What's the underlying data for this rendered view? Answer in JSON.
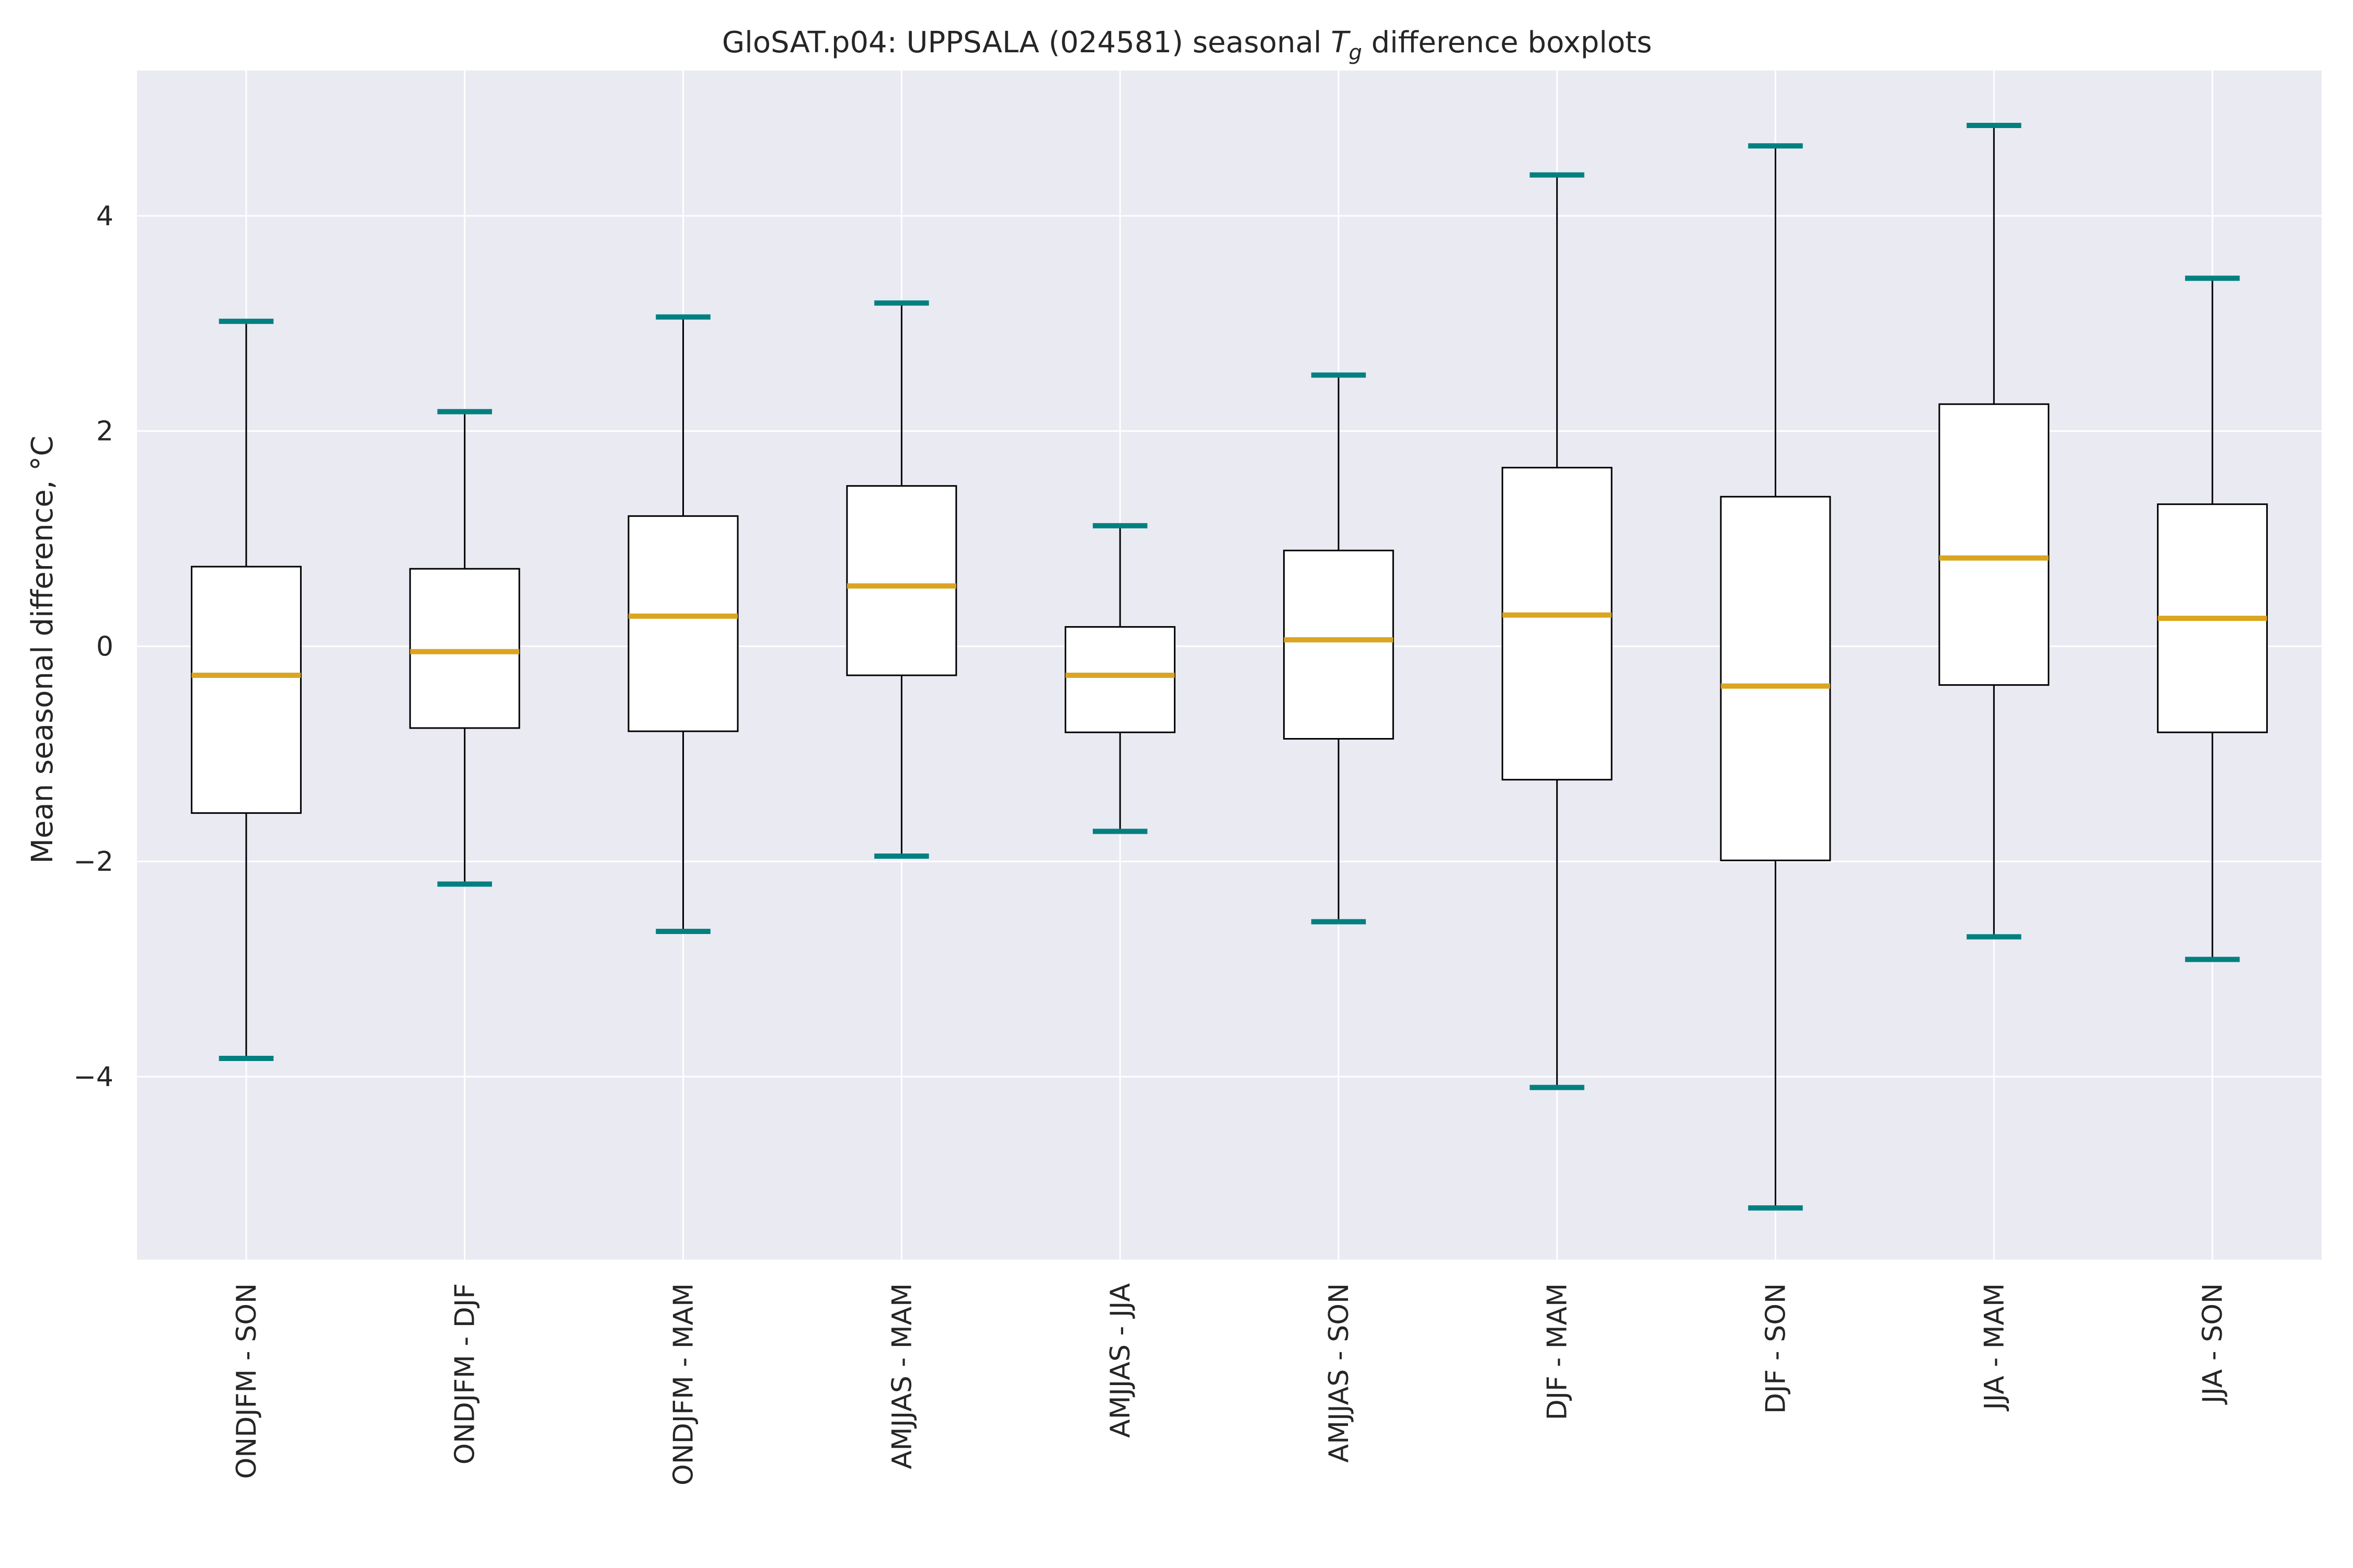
{
  "chart_data": {
    "type": "boxplot",
    "title": {
      "prefix": "GloSAT.p04: UPPSALA (024581) seasonal ",
      "symbol": "T",
      "subscript": "g",
      "suffix": " difference boxplots"
    },
    "ylabel": "Mean seasonal difference, °C",
    "xlabel": "",
    "ylim": [
      -5.7,
      5.35
    ],
    "yticks": [
      -4,
      -2,
      0,
      2,
      4
    ],
    "ytick_labels": [
      "−4",
      "−2",
      "0",
      "2",
      "4"
    ],
    "grid": true,
    "categories": [
      "ONDJFM - SON",
      "ONDJFM - DJF",
      "ONDJFM - MAM",
      "AMJJAS - MAM",
      "AMJJAS - JJA",
      "AMJJAS - SON",
      "DJF - MAM",
      "DJF - SON",
      "JJA - MAM",
      "JJA - SON"
    ],
    "boxes": [
      {
        "label": "ONDJFM - SON",
        "whislo": -3.83,
        "q1": -1.55,
        "median": -0.27,
        "q3": 0.74,
        "whishi": 3.02
      },
      {
        "label": "ONDJFM - DJF",
        "whislo": -2.21,
        "q1": -0.76,
        "median": -0.05,
        "q3": 0.72,
        "whishi": 2.18
      },
      {
        "label": "ONDJFM - MAM",
        "whislo": -2.65,
        "q1": -0.79,
        "median": 0.28,
        "q3": 1.21,
        "whishi": 3.06
      },
      {
        "label": "AMJJAS - MAM",
        "whislo": -1.95,
        "q1": -0.27,
        "median": 0.56,
        "q3": 1.49,
        "whishi": 3.19
      },
      {
        "label": "AMJJAS - JJA",
        "whislo": -1.72,
        "q1": -0.8,
        "median": -0.27,
        "q3": 0.18,
        "whishi": 1.12
      },
      {
        "label": "AMJJAS - SON",
        "whislo": -2.56,
        "q1": -0.86,
        "median": 0.06,
        "q3": 0.89,
        "whishi": 2.52
      },
      {
        "label": "DJF - MAM",
        "whislo": -4.1,
        "q1": -1.24,
        "median": 0.29,
        "q3": 1.66,
        "whishi": 4.38
      },
      {
        "label": "DJF - SON",
        "whislo": -5.22,
        "q1": -1.99,
        "median": -0.37,
        "q3": 1.39,
        "whishi": 4.65
      },
      {
        "label": "JJA - MAM",
        "whislo": -2.7,
        "q1": -0.36,
        "median": 0.82,
        "q3": 2.25,
        "whishi": 4.84
      },
      {
        "label": "JJA - SON",
        "whislo": -2.91,
        "q1": -0.8,
        "median": 0.26,
        "q3": 1.32,
        "whishi": 3.42
      }
    ],
    "colors": {
      "plot_background": "#eaeaf2",
      "grid": "#ffffff",
      "box_fill": "#ffffff",
      "box_edge": "#000000",
      "median": "#daa520",
      "caps": "#008080",
      "whiskers": "#000000"
    }
  }
}
